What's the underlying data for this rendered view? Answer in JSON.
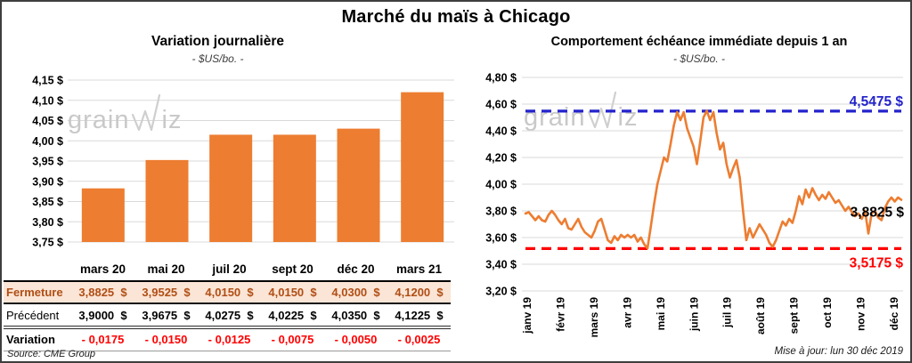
{
  "page": {
    "title": "Marché du maïs à Chicago",
    "source": "Source: CME Group",
    "updated": "Mise à jour: lun 30 déc 2019",
    "watermark": {
      "pre": "grain",
      "post": "iz"
    }
  },
  "colors": {
    "orange": "#ED7D31",
    "blue": "#2323CB",
    "red": "#FF0000",
    "grid": "#D9D9D9",
    "fermeture_bg": "#FBE5D6",
    "fermeture_text": "#B04E15",
    "watermark": "#C9C9C9"
  },
  "chart_data": [
    {
      "type": "bar",
      "title": "Variation journalière",
      "subtitle": "- $US/bo. -",
      "categories": [
        "mars 20",
        "mai 20",
        "juil 20",
        "sept 20",
        "déc 20",
        "mars 21"
      ],
      "values": [
        3.8825,
        3.9525,
        4.015,
        4.015,
        4.03,
        4.12
      ],
      "ylim": [
        3.75,
        4.15
      ],
      "ytick_values": [
        4.15,
        4.1,
        4.05,
        4.0,
        3.95,
        3.9,
        3.85,
        3.8,
        3.75
      ],
      "ytick_labels": [
        "4,15 $",
        "4,10 $",
        "4,05 $",
        "4,00 $",
        "3,95 $",
        "3,90 $",
        "3,85 $",
        "3,80 $",
        "3,75 $"
      ],
      "bar_color": "#ED7D31",
      "grid": true
    },
    {
      "type": "line",
      "title": "Comportement échéance immédiate depuis 1 an",
      "subtitle": "- $US/bo. -",
      "x_labels": [
        "janv 19",
        "févr 19",
        "mars 19",
        "avr 19",
        "mai 19",
        "juin 19",
        "juil 19",
        "août 19",
        "sept 19",
        "oct 19",
        "nov 19",
        "déc 19"
      ],
      "ylim": [
        3.2,
        4.8
      ],
      "ytick_values": [
        4.8,
        4.6,
        4.4,
        4.2,
        4.0,
        3.8,
        3.6,
        3.4,
        3.2
      ],
      "ytick_labels": [
        "4,80 $",
        "4,60 $",
        "4,40 $",
        "4,20 $",
        "4,00 $",
        "3,80 $",
        "3,60 $",
        "3,40 $",
        "3,20 $"
      ],
      "line_color": "#ED7D31",
      "grid": true,
      "hlines": [
        {
          "value": 4.5475,
          "label": "4,5475 $",
          "color": "#2323CB",
          "label_pos": "above"
        },
        {
          "value": 3.5175,
          "label": "3,5175 $",
          "color": "#FF0000",
          "label_pos": "below"
        }
      ],
      "last_label": {
        "value": 3.8825,
        "label": "3,8825 $",
        "color": "#000000"
      },
      "values": [
        3.78,
        3.79,
        3.76,
        3.73,
        3.76,
        3.73,
        3.72,
        3.77,
        3.8,
        3.77,
        3.73,
        3.7,
        3.74,
        3.67,
        3.66,
        3.7,
        3.74,
        3.68,
        3.64,
        3.62,
        3.6,
        3.65,
        3.72,
        3.74,
        3.66,
        3.58,
        3.56,
        3.61,
        3.58,
        3.62,
        3.6,
        3.62,
        3.6,
        3.62,
        3.57,
        3.6,
        3.55,
        3.52,
        3.68,
        3.85,
        4.0,
        4.1,
        4.2,
        4.17,
        4.3,
        4.44,
        4.54,
        4.48,
        4.54,
        4.42,
        4.35,
        4.28,
        4.15,
        4.32,
        4.5,
        4.55,
        4.48,
        4.54,
        4.38,
        4.26,
        4.31,
        4.15,
        4.05,
        4.12,
        4.18,
        4.05,
        3.8,
        3.58,
        3.67,
        3.6,
        3.65,
        3.7,
        3.66,
        3.62,
        3.56,
        3.53,
        3.58,
        3.65,
        3.72,
        3.69,
        3.74,
        3.71,
        3.8,
        3.91,
        3.85,
        3.96,
        3.9,
        3.97,
        3.92,
        3.88,
        3.92,
        3.89,
        3.94,
        3.9,
        3.86,
        3.88,
        3.84,
        3.8,
        3.83,
        3.79,
        3.76,
        3.78,
        3.74,
        3.8,
        3.63,
        3.78,
        3.8,
        3.75,
        3.73,
        3.82,
        3.87,
        3.9,
        3.87,
        3.9,
        3.8825
      ]
    }
  ],
  "table": {
    "col_headers": [
      "mars 20",
      "mai 20",
      "juil 20",
      "sept 20",
      "déc 20",
      "mars 21"
    ],
    "rows": [
      {
        "label": "Fermeture",
        "values": [
          "3,8825  $",
          "3,9525  $",
          "4,0150  $",
          "4,0150  $",
          "4,0300  $",
          "4,1200  $"
        ]
      },
      {
        "label": "Précédent",
        "values": [
          "3,9000  $",
          "3,9675  $",
          "4,0275  $",
          "4,0225  $",
          "4,0350  $",
          "4,1225  $"
        ]
      },
      {
        "label": "Variation",
        "values": [
          "- 0,0175",
          "- 0,0150",
          "- 0,0125",
          "- 0,0075",
          "- 0,0050",
          "- 0,0025"
        ]
      }
    ]
  }
}
